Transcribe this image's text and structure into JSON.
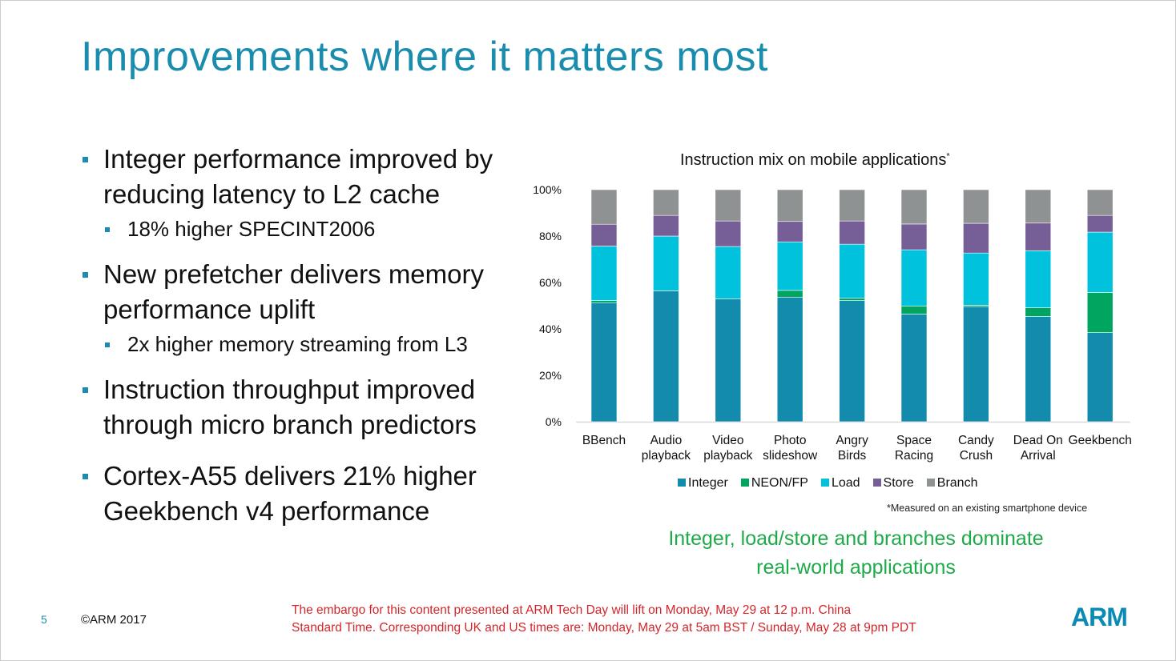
{
  "title": "Improvements where it matters most",
  "bullets": [
    {
      "text": "Integer performance improved by reducing latency to L2 cache",
      "sub": "18% higher SPECINT2006"
    },
    {
      "text": "New prefetcher delivers memory performance uplift",
      "sub": "2x higher memory streaming from L3"
    },
    {
      "text": "Instruction throughput improved through micro branch predictors"
    },
    {
      "text": "Cortex-A55 delivers 21% higher Geekbench v4 performance"
    }
  ],
  "chart_data": {
    "type": "bar",
    "stacked": true,
    "title": "Instruction mix on mobile applications",
    "title_mark": "*",
    "categories": [
      [
        "BBench"
      ],
      [
        "Audio",
        "playback"
      ],
      [
        "Video",
        "playback"
      ],
      [
        "Photo",
        "slideshow"
      ],
      [
        "Angry",
        "Birds"
      ],
      [
        "Space",
        "Racing"
      ],
      [
        "Candy",
        "Crush"
      ],
      [
        "Dead On",
        "Arrival"
      ],
      [
        "Geekbench"
      ]
    ],
    "yticks": [
      "0%",
      "20%",
      "40%",
      "60%",
      "80%",
      "100%"
    ],
    "ylim": [
      0,
      100
    ],
    "grid": false,
    "legend": "bottom",
    "series": [
      {
        "name": "Integer",
        "color": "#128bac",
        "values": [
          51.3,
          56.4,
          52.9,
          53.7,
          52.2,
          46.4,
          49.6,
          45.4,
          38.4
        ]
      },
      {
        "name": "NEON/FP",
        "color": "#00a560",
        "values": [
          0.9,
          0,
          0,
          2.9,
          1.0,
          3.5,
          0.6,
          3.7,
          17.3
        ]
      },
      {
        "name": "Load",
        "color": "#00c2dc",
        "values": [
          23.5,
          23.6,
          22.6,
          20.9,
          23.3,
          24.2,
          22.5,
          24.6,
          26.0
        ]
      },
      {
        "name": "Store",
        "color": "#765e96",
        "values": [
          9.4,
          8.9,
          11.0,
          8.8,
          10.0,
          11.1,
          12.8,
          11.9,
          7.2
        ]
      },
      {
        "name": "Branch",
        "color": "#8f9292",
        "values": [
          14.9,
          11.1,
          13.5,
          13.7,
          13.5,
          14.8,
          14.5,
          14.4,
          11.1
        ]
      }
    ],
    "footnote": "*Measured on an existing smartphone device"
  },
  "conclusion": [
    "Integer, load/store and branches dominate",
    "real-world applications"
  ],
  "footer": {
    "page": "5",
    "copyright": "©ARM 2017",
    "embargo": [
      "The embargo for this content presented at ARM Tech Day will lift on Monday, May 29 at 12 p.m. China",
      "Standard Time. Corresponding UK and US times are: Monday, May 29 at 5am BST / Sunday, May 28 at 9pm PDT"
    ],
    "logo": "ARM"
  }
}
